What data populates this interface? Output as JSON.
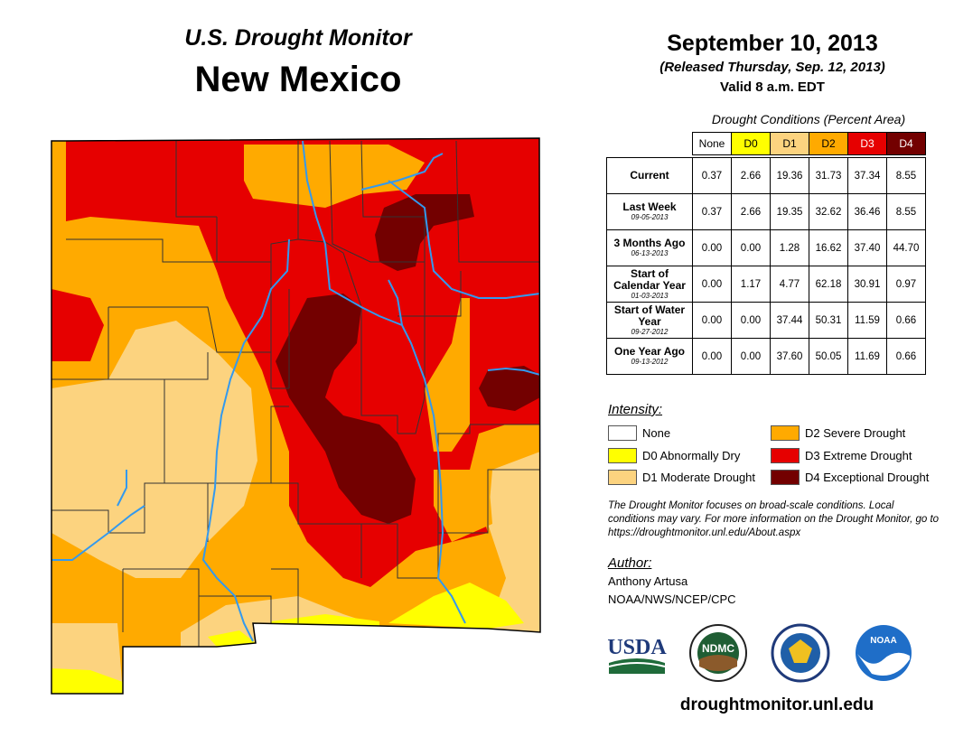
{
  "header": {
    "subtitle": "U.S. Drought Monitor",
    "state": "New Mexico",
    "date": "September 10, 2013",
    "released": "(Released Thursday, Sep. 12, 2013)",
    "valid": "Valid 8 a.m. EDT"
  },
  "conditions": {
    "title": "Drought Conditions (Percent Area)",
    "columns": [
      "None",
      "D0",
      "D1",
      "D2",
      "D3",
      "D4"
    ],
    "rows": [
      {
        "label": "Current",
        "date": "",
        "values": [
          "0.37",
          "2.66",
          "19.36",
          "31.73",
          "37.34",
          "8.55"
        ]
      },
      {
        "label": "Last Week",
        "date": "09-05-2013",
        "values": [
          "0.37",
          "2.66",
          "19.35",
          "32.62",
          "36.46",
          "8.55"
        ]
      },
      {
        "label": "3 Months Ago",
        "date": "06-13-2013",
        "values": [
          "0.00",
          "0.00",
          "1.28",
          "16.62",
          "37.40",
          "44.70"
        ]
      },
      {
        "label": "Start of Calendar Year",
        "date": "01-03-2013",
        "values": [
          "0.00",
          "1.17",
          "4.77",
          "62.18",
          "30.91",
          "0.97"
        ]
      },
      {
        "label": "Start of Water Year",
        "date": "09-27-2012",
        "values": [
          "0.00",
          "0.00",
          "37.44",
          "50.31",
          "11.59",
          "0.66"
        ]
      },
      {
        "label": "One Year Ago",
        "date": "09-13-2012",
        "values": [
          "0.00",
          "0.00",
          "37.60",
          "50.05",
          "11.69",
          "0.66"
        ]
      }
    ]
  },
  "colors": {
    "none": "#ffffff",
    "d0": "#ffff00",
    "d1": "#fcd37f",
    "d2": "#ffaa00",
    "d3": "#e60000",
    "d4": "#730000",
    "river": "#3399ee",
    "county_line": "#333333"
  },
  "legend": {
    "title": "Intensity:",
    "items": [
      {
        "label": "None"
      },
      {
        "label": "D0 Abnormally Dry"
      },
      {
        "label": "D1 Moderate Drought"
      },
      {
        "label": "D2 Severe Drought"
      },
      {
        "label": "D3 Extreme Drought"
      },
      {
        "label": "D4 Exceptional Drought"
      }
    ]
  },
  "note": "The Drought Monitor focuses on broad-scale conditions. Local conditions may vary. For more information on the Drought Monitor, go to https://droughtmonitor.unl.edu/About.aspx",
  "author": {
    "heading": "Author:",
    "name": "Anthony Artusa",
    "org": "NOAA/NWS/NCEP/CPC"
  },
  "logos": {
    "usda": "USDA",
    "ndmc": "NDMC",
    "noaa": "NOAA"
  },
  "url": "droughtmonitor.unl.edu"
}
